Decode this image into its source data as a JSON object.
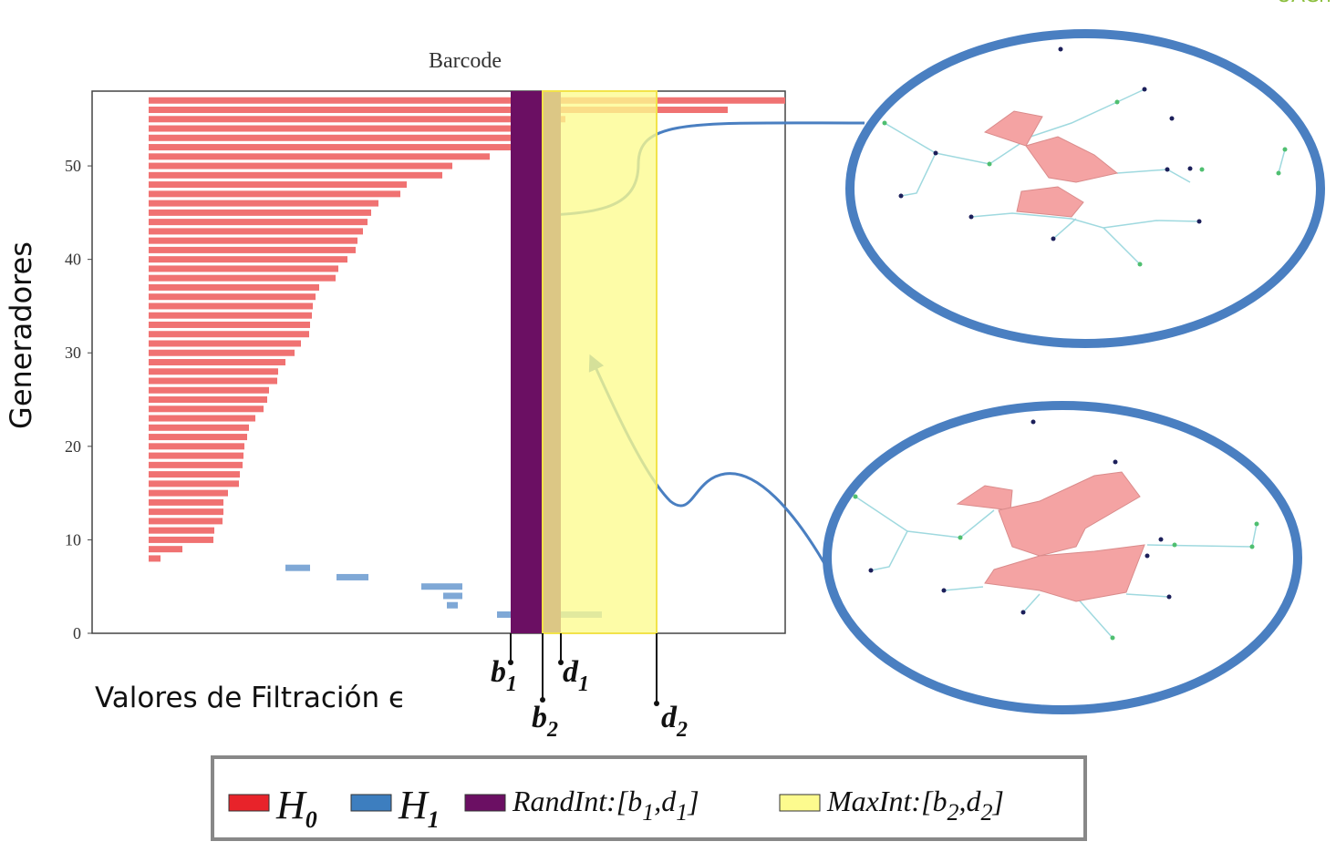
{
  "corner_text": "UACh",
  "chart_data": {
    "type": "barcode",
    "title": "Barcode",
    "y_label": "Generadores",
    "x_label": "Valores de Filtración ϵ",
    "xlim": [
      0,
      760
    ],
    "ylim": [
      0,
      58
    ],
    "yticks": [
      0,
      10,
      20,
      30,
      40,
      50
    ],
    "series": [
      {
        "name": "H",
        "sub": "0",
        "color": "#e8232a",
        "bar_color": "#f07272",
        "y": [
          8,
          9,
          10,
          11,
          12,
          13,
          14,
          15,
          16,
          17,
          18,
          19,
          20,
          21,
          22,
          23,
          24,
          25,
          26,
          27,
          28,
          29,
          30,
          31,
          32,
          33,
          34,
          35,
          36,
          37,
          38,
          39,
          40,
          41,
          42,
          43,
          44,
          45,
          46,
          47,
          48,
          49,
          50,
          51,
          52,
          53,
          54,
          55,
          56,
          57
        ],
        "start": [
          62,
          62,
          62,
          62,
          62,
          62,
          62,
          62,
          62,
          62,
          62,
          62,
          62,
          62,
          62,
          62,
          62,
          62,
          62,
          62,
          62,
          62,
          62,
          62,
          62,
          62,
          62,
          62,
          62,
          62,
          62,
          62,
          62,
          62,
          62,
          62,
          62,
          62,
          62,
          62,
          62,
          62,
          62,
          62,
          62,
          62,
          62,
          62,
          62,
          62
        ],
        "end": [
          75,
          99,
          133,
          134,
          143,
          144,
          144,
          149,
          161,
          162,
          165,
          166,
          167,
          170,
          172,
          179,
          188,
          192,
          194,
          203,
          204,
          212,
          222,
          229,
          238,
          239,
          241,
          242,
          245,
          249,
          267,
          270,
          280,
          289,
          291,
          297,
          302,
          306,
          314,
          338,
          345,
          384,
          395,
          436,
          469,
          489,
          494,
          519,
          697,
          760
        ]
      },
      {
        "name": "H",
        "sub": "1",
        "color": "#3d7ebf",
        "bar_color": "#7fa8d6",
        "y": [
          7,
          6,
          5,
          4,
          3,
          2,
          1
        ],
        "start": [
          212,
          268,
          361,
          385,
          389,
          444,
          459
        ],
        "end": [
          239,
          303,
          406,
          406,
          401,
          559,
          514
        ]
      }
    ],
    "intervals": [
      {
        "name": [
          "RandInt:[b",
          "1",
          ",d",
          "1",
          "]"
        ],
        "color": "#6b0f63",
        "start": 459,
        "end": 514
      },
      {
        "name": [
          "MaxInt:[b",
          "2",
          ",d",
          "2",
          "]"
        ],
        "color": "#fdfb8e",
        "start": 494,
        "end": 619
      }
    ],
    "markers": [
      {
        "letter": "b",
        "sub": "1",
        "value": 459
      },
      {
        "letter": "b",
        "sub": "2",
        "value": 494
      },
      {
        "letter": "d",
        "sub": "1",
        "value": 514
      },
      {
        "letter": "d",
        "sub": "2",
        "value": 619
      }
    ]
  }
}
